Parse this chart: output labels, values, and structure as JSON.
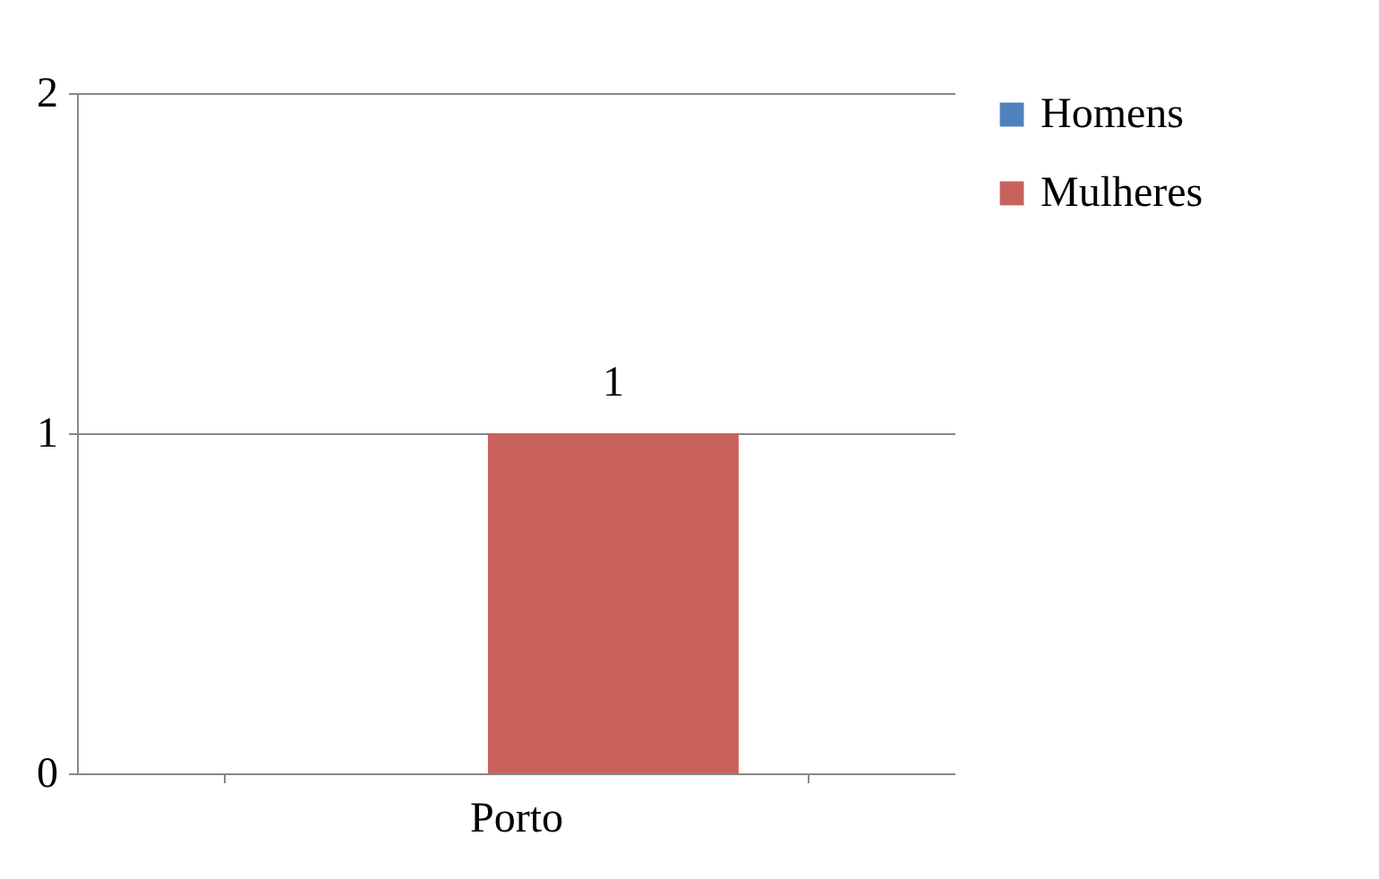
{
  "chart_data": {
    "type": "bar",
    "categories": [
      "Porto"
    ],
    "series": [
      {
        "name": "Homens",
        "color": "#4f81bd",
        "values": [
          0
        ],
        "value_labels": [
          null
        ]
      },
      {
        "name": "Mulheres",
        "color": "#c9625d",
        "values": [
          1
        ],
        "value_labels": [
          "1"
        ]
      }
    ],
    "ylim": [
      0,
      2
    ],
    "yticks": [
      0,
      1,
      2
    ],
    "grid": "y",
    "legend": "right"
  }
}
